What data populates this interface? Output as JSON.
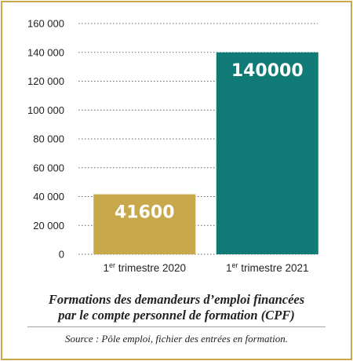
{
  "colors": {
    "frame": "#c8a94a",
    "bars": [
      "#c9a84c",
      "#0f7a76"
    ],
    "gridline": "#666666"
  },
  "chart_data": {
    "type": "bar",
    "categories": [
      {
        "prefix": "1",
        "sup": "er",
        "rest": " trimestre 2020"
      },
      {
        "prefix": "1",
        "sup": "er",
        "rest": " trimestre 2021"
      }
    ],
    "values": [
      41600,
      140000
    ],
    "data_labels": [
      "41600",
      "140000"
    ],
    "ylim": [
      0,
      160000
    ],
    "yticks": [
      0,
      20000,
      40000,
      60000,
      80000,
      100000,
      120000,
      140000,
      160000
    ],
    "ytick_labels": [
      "0",
      "20 000",
      "40 000",
      "60 000",
      "80 000",
      "100 000",
      "120 000",
      "140 000",
      "160 000"
    ],
    "grid": true,
    "grid_style": "dotted",
    "title": "Formations des demandeurs d’emploi financées par le compte personnel de formation (CPF)"
  },
  "caption": {
    "title_line1": "Formations des demandeurs d’emploi financées",
    "title_line2": "par le compte personnel de formation (CPF)",
    "source": "Source : Pôle emploi, fichier des entrées en formation."
  }
}
